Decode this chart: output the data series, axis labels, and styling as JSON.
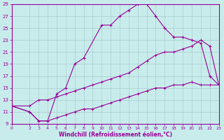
{
  "xlabel": "Windchill (Refroidissement éolien,°C)",
  "bg_color": "#c8ecec",
  "line_color": "#990099",
  "grid_color": "#aacccc",
  "xlim": [
    0,
    23
  ],
  "ylim": [
    9,
    29
  ],
  "xticks": [
    0,
    2,
    3,
    4,
    5,
    6,
    7,
    8,
    9,
    10,
    11,
    12,
    13,
    14,
    15,
    16,
    17,
    18,
    19,
    20,
    21,
    22,
    23
  ],
  "yticks": [
    9,
    11,
    13,
    15,
    17,
    19,
    21,
    23,
    25,
    27,
    29
  ],
  "curve_main_x": [
    0,
    2,
    3,
    4,
    5,
    6,
    7,
    8,
    10,
    11,
    12,
    13,
    14,
    15,
    16,
    17,
    18,
    19,
    20,
    21,
    22,
    23
  ],
  "curve_main_y": [
    12,
    11,
    9.5,
    9.5,
    14,
    15,
    19,
    20,
    25.5,
    25.5,
    27,
    28,
    29,
    29,
    27,
    25,
    23.5,
    23.5,
    23,
    22.5,
    17,
    15.5
  ],
  "curve_upper_x": [
    0,
    2,
    3,
    4,
    5,
    6,
    7,
    8,
    9,
    10,
    11,
    12,
    13,
    14,
    15,
    16,
    17,
    18,
    19,
    20,
    21,
    22,
    23
  ],
  "curve_upper_y": [
    12,
    12,
    13,
    13,
    13.5,
    14,
    14.5,
    15,
    15.5,
    16,
    16.5,
    17,
    17.5,
    18.5,
    19.5,
    20.5,
    21,
    21,
    21.5,
    22,
    23,
    22,
    15.5
  ],
  "curve_lower_x": [
    0,
    2,
    3,
    4,
    5,
    6,
    7,
    8,
    9,
    10,
    11,
    12,
    13,
    14,
    15,
    16,
    17,
    18,
    19,
    20,
    21,
    22,
    23
  ],
  "curve_lower_y": [
    12,
    11,
    9.5,
    9.5,
    10,
    10.5,
    11,
    11.5,
    11.5,
    12,
    12.5,
    13,
    13.5,
    14,
    14.5,
    15,
    15,
    15.5,
    15.5,
    16,
    15.5,
    15.5,
    15.5
  ]
}
